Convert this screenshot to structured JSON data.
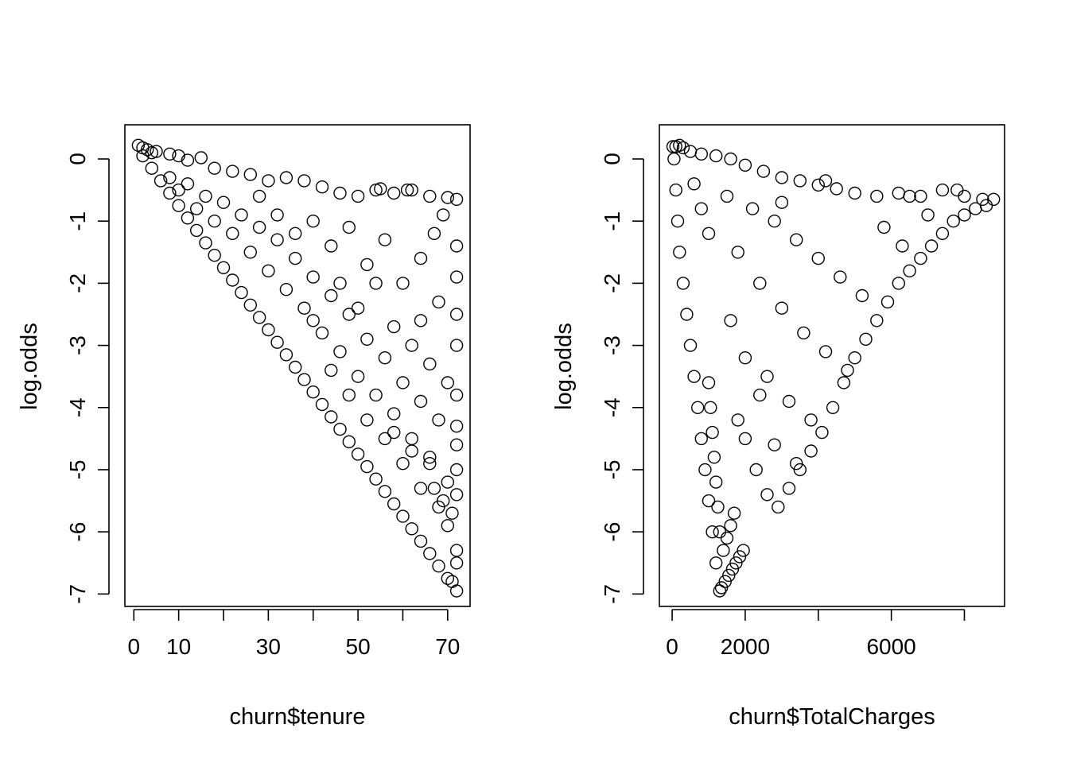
{
  "chart_data": [
    {
      "type": "scatter",
      "xlabel": "churn$tenure",
      "ylabel": "log.odds",
      "xlim": [
        -2,
        75
      ],
      "ylim": [
        -7.2,
        0.55
      ],
      "x_ticks": [
        0,
        10,
        20,
        30,
        40,
        50,
        60,
        70
      ],
      "x_tick_labels": [
        "0",
        "10",
        "",
        "30",
        "",
        "50",
        "",
        "70"
      ],
      "y_ticks": [
        0,
        -1,
        -2,
        -3,
        -4,
        -5,
        -6,
        -7
      ],
      "y_tick_labels": [
        "0",
        "-1",
        "-2",
        "-3",
        "-4",
        "-5",
        "-6",
        "-7"
      ],
      "marker": "open-circle",
      "color": "#000000",
      "points": [
        [
          1,
          0.22
        ],
        [
          2,
          0.18
        ],
        [
          3,
          0.15
        ],
        [
          4,
          0.1
        ],
        [
          5,
          0.12
        ],
        [
          8,
          0.08
        ],
        [
          10,
          0.05
        ],
        [
          12,
          -0.02
        ],
        [
          15,
          0.02
        ],
        [
          18,
          -0.15
        ],
        [
          22,
          -0.2
        ],
        [
          26,
          -0.25
        ],
        [
          30,
          -0.35
        ],
        [
          34,
          -0.3
        ],
        [
          38,
          -0.35
        ],
        [
          42,
          -0.45
        ],
        [
          46,
          -0.55
        ],
        [
          50,
          -0.6
        ],
        [
          54,
          -0.5
        ],
        [
          58,
          -0.55
        ],
        [
          62,
          -0.5
        ],
        [
          66,
          -0.6
        ],
        [
          70,
          -0.62
        ],
        [
          72,
          -0.65
        ],
        [
          2,
          0.05
        ],
        [
          4,
          -0.15
        ],
        [
          6,
          -0.35
        ],
        [
          8,
          -0.55
        ],
        [
          10,
          -0.75
        ],
        [
          12,
          -0.95
        ],
        [
          14,
          -1.15
        ],
        [
          16,
          -1.35
        ],
        [
          18,
          -1.55
        ],
        [
          20,
          -1.75
        ],
        [
          22,
          -1.95
        ],
        [
          24,
          -2.15
        ],
        [
          26,
          -2.35
        ],
        [
          28,
          -2.55
        ],
        [
          30,
          -2.75
        ],
        [
          32,
          -2.95
        ],
        [
          34,
          -3.15
        ],
        [
          36,
          -3.35
        ],
        [
          38,
          -3.55
        ],
        [
          40,
          -3.75
        ],
        [
          42,
          -3.95
        ],
        [
          44,
          -4.15
        ],
        [
          46,
          -4.35
        ],
        [
          48,
          -4.55
        ],
        [
          50,
          -4.75
        ],
        [
          52,
          -4.95
        ],
        [
          54,
          -5.15
        ],
        [
          56,
          -5.35
        ],
        [
          58,
          -5.55
        ],
        [
          60,
          -5.75
        ],
        [
          62,
          -5.95
        ],
        [
          64,
          -6.15
        ],
        [
          66,
          -6.35
        ],
        [
          68,
          -6.55
        ],
        [
          70,
          -6.75
        ],
        [
          72,
          -6.95
        ],
        [
          8,
          -0.3
        ],
        [
          10,
          -0.5
        ],
        [
          12,
          -0.4
        ],
        [
          14,
          -0.8
        ],
        [
          16,
          -0.6
        ],
        [
          18,
          -1.0
        ],
        [
          20,
          -0.7
        ],
        [
          22,
          -1.2
        ],
        [
          24,
          -0.9
        ],
        [
          26,
          -1.5
        ],
        [
          28,
          -1.1
        ],
        [
          30,
          -1.8
        ],
        [
          32,
          -1.3
        ],
        [
          34,
          -2.1
        ],
        [
          36,
          -1.6
        ],
        [
          38,
          -2.4
        ],
        [
          40,
          -1.9
        ],
        [
          42,
          -2.8
        ],
        [
          44,
          -2.2
        ],
        [
          46,
          -3.1
        ],
        [
          48,
          -2.5
        ],
        [
          50,
          -3.5
        ],
        [
          52,
          -2.9
        ],
        [
          54,
          -3.8
        ],
        [
          56,
          -3.2
        ],
        [
          58,
          -4.1
        ],
        [
          60,
          -3.6
        ],
        [
          62,
          -4.5
        ],
        [
          64,
          -3.9
        ],
        [
          66,
          -4.8
        ],
        [
          68,
          -4.2
        ],
        [
          70,
          -5.2
        ],
        [
          72,
          -4.6
        ],
        [
          28,
          -0.6
        ],
        [
          32,
          -0.9
        ],
        [
          36,
          -1.2
        ],
        [
          40,
          -1.0
        ],
        [
          44,
          -1.4
        ],
        [
          48,
          -1.1
        ],
        [
          52,
          -1.7
        ],
        [
          56,
          -1.3
        ],
        [
          60,
          -2.0
        ],
        [
          64,
          -1.6
        ],
        [
          68,
          -2.3
        ],
        [
          72,
          -1.9
        ],
        [
          46,
          -2.0
        ],
        [
          50,
          -2.4
        ],
        [
          54,
          -2.0
        ],
        [
          58,
          -2.7
        ],
        [
          62,
          -3.0
        ],
        [
          66,
          -3.3
        ],
        [
          70,
          -3.6
        ],
        [
          72,
          -3.0
        ],
        [
          40,
          -2.6
        ],
        [
          44,
          -3.4
        ],
        [
          48,
          -3.8
        ],
        [
          52,
          -4.2
        ],
        [
          56,
          -4.5
        ],
        [
          60,
          -4.9
        ],
        [
          64,
          -5.3
        ],
        [
          68,
          -5.6
        ],
        [
          70,
          -5.9
        ],
        [
          72,
          -5.4
        ],
        [
          55,
          -0.48
        ],
        [
          61,
          -0.5
        ],
        [
          67,
          -5.3
        ],
        [
          69,
          -5.5
        ],
        [
          71,
          -5.7
        ],
        [
          72,
          -6.3
        ],
        [
          72,
          -6.5
        ],
        [
          71,
          -6.8
        ],
        [
          66,
          -4.9
        ],
        [
          62,
          -4.7
        ],
        [
          58,
          -4.4
        ],
        [
          64,
          -2.6
        ],
        [
          67,
          -1.2
        ],
        [
          69,
          -0.9
        ],
        [
          72,
          -1.4
        ],
        [
          72,
          -2.5
        ],
        [
          72,
          -3.8
        ],
        [
          72,
          -4.3
        ],
        [
          72,
          -5.0
        ]
      ]
    },
    {
      "type": "scatter",
      "xlabel": "churn$TotalCharges",
      "ylabel": "log.odds",
      "xlim": [
        -350,
        9100
      ],
      "ylim": [
        -7.2,
        0.55
      ],
      "x_ticks": [
        0,
        2000,
        4000,
        6000,
        8000
      ],
      "x_tick_labels": [
        "0",
        "2000",
        "",
        "6000",
        ""
      ],
      "y_ticks": [
        0,
        -1,
        -2,
        -3,
        -4,
        -5,
        -6,
        -7
      ],
      "y_tick_labels": [
        "0",
        "-1",
        "-2",
        "-3",
        "-4",
        "-5",
        "-6",
        "-7"
      ],
      "marker": "open-circle",
      "color": "#000000",
      "points": [
        [
          20,
          0.2
        ],
        [
          100,
          0.2
        ],
        [
          200,
          0.22
        ],
        [
          300,
          0.18
        ],
        [
          500,
          0.12
        ],
        [
          800,
          0.08
        ],
        [
          1200,
          0.05
        ],
        [
          1600,
          0.0
        ],
        [
          2000,
          -0.1
        ],
        [
          2500,
          -0.2
        ],
        [
          3000,
          -0.3
        ],
        [
          3500,
          -0.35
        ],
        [
          4000,
          -0.42
        ],
        [
          4500,
          -0.48
        ],
        [
          5000,
          -0.55
        ],
        [
          5600,
          -0.6
        ],
        [
          6200,
          -0.55
        ],
        [
          6800,
          -0.6
        ],
        [
          7400,
          -0.5
        ],
        [
          8000,
          -0.6
        ],
        [
          8500,
          -0.65
        ],
        [
          8800,
          -0.65
        ],
        [
          50,
          0.0
        ],
        [
          100,
          -0.5
        ],
        [
          150,
          -1.0
        ],
        [
          200,
          -1.5
        ],
        [
          300,
          -2.0
        ],
        [
          400,
          -2.5
        ],
        [
          500,
          -3.0
        ],
        [
          600,
          -3.5
        ],
        [
          700,
          -4.0
        ],
        [
          800,
          -4.5
        ],
        [
          900,
          -5.0
        ],
        [
          1000,
          -5.5
        ],
        [
          1100,
          -6.0
        ],
        [
          1200,
          -6.5
        ],
        [
          1300,
          -6.95
        ],
        [
          1350,
          -6.9
        ],
        [
          1450,
          -6.8
        ],
        [
          1550,
          -6.7
        ],
        [
          1650,
          -6.6
        ],
        [
          1750,
          -6.5
        ],
        [
          1850,
          -6.4
        ],
        [
          1950,
          -6.3
        ],
        [
          1400,
          -6.3
        ],
        [
          1500,
          -6.1
        ],
        [
          1600,
          -5.9
        ],
        [
          1700,
          -5.7
        ],
        [
          1300,
          -6.0
        ],
        [
          1250,
          -5.6
        ],
        [
          1200,
          -5.2
        ],
        [
          1150,
          -4.8
        ],
        [
          1100,
          -4.4
        ],
        [
          1050,
          -4.0
        ],
        [
          1000,
          -3.6
        ],
        [
          2000,
          -4.5
        ],
        [
          2300,
          -5.0
        ],
        [
          2600,
          -5.4
        ],
        [
          2900,
          -5.6
        ],
        [
          3200,
          -5.3
        ],
        [
          3500,
          -5.0
        ],
        [
          3800,
          -4.7
        ],
        [
          4100,
          -4.4
        ],
        [
          4400,
          -4.0
        ],
        [
          4700,
          -3.6
        ],
        [
          5000,
          -3.2
        ],
        [
          5300,
          -2.9
        ],
        [
          5600,
          -2.6
        ],
        [
          5900,
          -2.3
        ],
        [
          6200,
          -2.0
        ],
        [
          6500,
          -1.8
        ],
        [
          6800,
          -1.6
        ],
        [
          7100,
          -1.4
        ],
        [
          7400,
          -1.2
        ],
        [
          7700,
          -1.0
        ],
        [
          8000,
          -0.9
        ],
        [
          8300,
          -0.8
        ],
        [
          8600,
          -0.75
        ],
        [
          1500,
          -0.6
        ],
        [
          2200,
          -0.8
        ],
        [
          2800,
          -1.0
        ],
        [
          3400,
          -1.3
        ],
        [
          4000,
          -1.6
        ],
        [
          4600,
          -1.9
        ],
        [
          5200,
          -2.2
        ],
        [
          1800,
          -1.5
        ],
        [
          2400,
          -2.0
        ],
        [
          3000,
          -2.4
        ],
        [
          3600,
          -2.8
        ],
        [
          4200,
          -3.1
        ],
        [
          4800,
          -3.4
        ],
        [
          2600,
          -3.5
        ],
        [
          3200,
          -3.9
        ],
        [
          3800,
          -4.2
        ],
        [
          1600,
          -2.6
        ],
        [
          2000,
          -3.2
        ],
        [
          2400,
          -3.8
        ],
        [
          1800,
          -4.2
        ],
        [
          2800,
          -4.6
        ],
        [
          3400,
          -4.9
        ],
        [
          6500,
          -0.6
        ],
        [
          7000,
          -0.9
        ],
        [
          7800,
          -0.5
        ],
        [
          4200,
          -0.35
        ],
        [
          5800,
          -1.1
        ],
        [
          6300,
          -1.4
        ],
        [
          3000,
          -0.7
        ],
        [
          1000,
          -1.2
        ],
        [
          800,
          -0.8
        ],
        [
          600,
          -0.4
        ]
      ]
    }
  ]
}
